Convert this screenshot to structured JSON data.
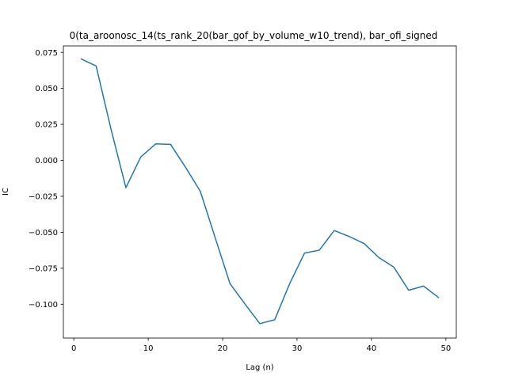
{
  "chart_data": {
    "type": "line",
    "title": "0(ta_aroonosc_14(ts_rank_20(bar_gof_by_volume_w10_trend), bar_ofi_signed",
    "xlabel": "Lag (n)",
    "ylabel": "IC",
    "xlim": [
      -1.4,
      51.4
    ],
    "ylim": [
      -0.1235,
      0.0795
    ],
    "grid": false,
    "legend": "none",
    "x_ticks": [
      0,
      10,
      20,
      30,
      40,
      50
    ],
    "y_ticks": [
      0.075,
      0.05,
      0.025,
      0.0,
      -0.025,
      -0.05,
      -0.075,
      -0.1
    ],
    "x_tick_labels": [
      "0",
      "10",
      "20",
      "30",
      "40",
      "50"
    ],
    "y_tick_labels": [
      "0.075",
      "0.050",
      "0.025",
      "0.000",
      "−0.025",
      "−0.050",
      "−0.075",
      "−0.100"
    ],
    "line_color": "#1f77b4",
    "series": [
      {
        "x": [
          1,
          3,
          5,
          7,
          9,
          11,
          13,
          15,
          17,
          19,
          21,
          23,
          25,
          27,
          29,
          31,
          33,
          35,
          37,
          39,
          41,
          43,
          45,
          47,
          49
        ],
        "values": [
          0.0704,
          0.0656,
          0.0217,
          -0.019,
          0.0023,
          0.0114,
          0.0111,
          -0.0047,
          -0.0215,
          -0.0538,
          -0.0858,
          -0.0998,
          -0.1135,
          -0.1108,
          -0.0858,
          -0.0645,
          -0.0624,
          -0.0488,
          -0.0529,
          -0.0578,
          -0.0676,
          -0.0742,
          -0.0903,
          -0.0874,
          -0.0953
        ]
      }
    ]
  }
}
